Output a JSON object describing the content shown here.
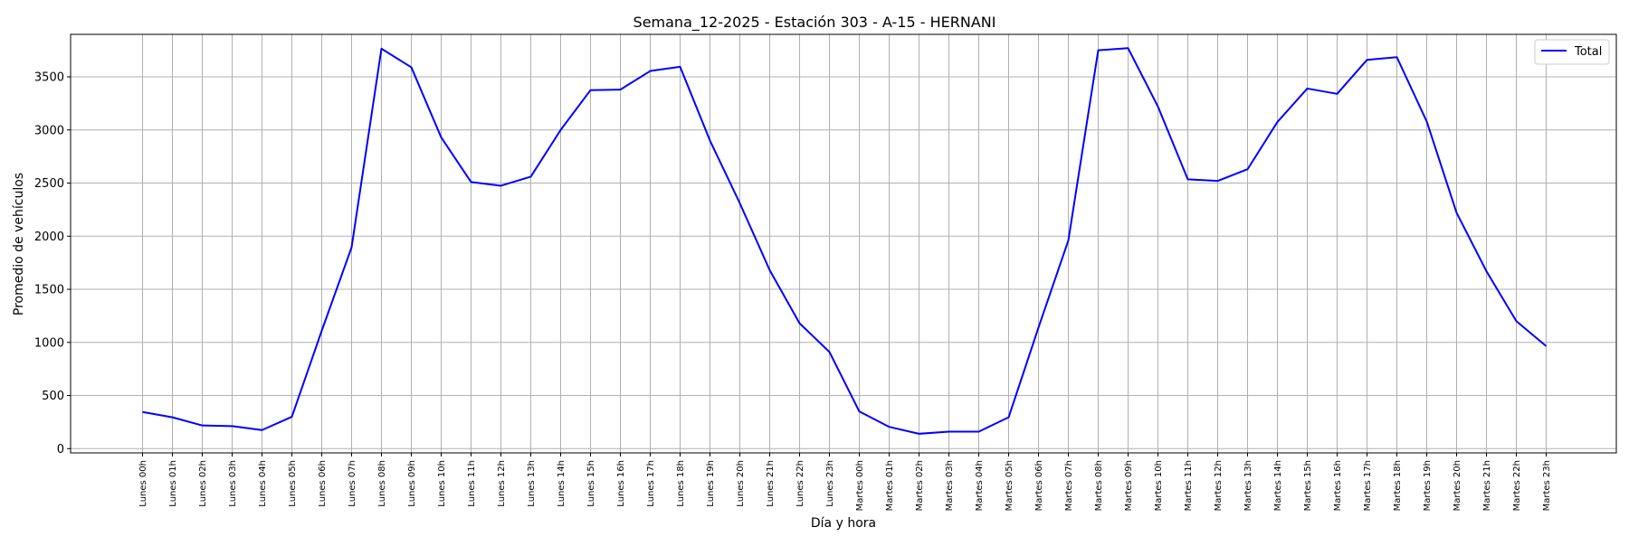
{
  "chart_data": {
    "type": "line",
    "title": "Semana_12-2025 - Estación 303 - A-15  - HERNANI",
    "xlabel": "Día y hora",
    "ylabel": "Promedio de vehículos",
    "ylim": [
      -40,
      3900
    ],
    "yticks": [
      0,
      500,
      1000,
      1500,
      2000,
      2500,
      3000,
      3500
    ],
    "grid": true,
    "legend_position": "top-right",
    "categories": [
      "Lunes 00h",
      "Lunes 01h",
      "Lunes 02h",
      "Lunes 03h",
      "Lunes 04h",
      "Lunes 05h",
      "Lunes 06h",
      "Lunes 07h",
      "Lunes 08h",
      "Lunes 09h",
      "Lunes 10h",
      "Lunes 11h",
      "Lunes 12h",
      "Lunes 13h",
      "Lunes 14h",
      "Lunes 15h",
      "Lunes 16h",
      "Lunes 17h",
      "Lunes 18h",
      "Lunes 19h",
      "Lunes 20h",
      "Lunes 21h",
      "Lunes 22h",
      "Lunes 23h",
      "Martes 00h",
      "Martes 01h",
      "Martes 02h",
      "Martes 03h",
      "Martes 04h",
      "Martes 05h",
      "Martes 06h",
      "Martes 07h",
      "Martes 08h",
      "Martes 09h",
      "Martes 10h",
      "Martes 11h",
      "Martes 12h",
      "Martes 13h",
      "Martes 14h",
      "Martes 15h",
      "Martes 16h",
      "Martes 17h",
      "Martes 18h",
      "Martes 19h",
      "Martes 20h",
      "Martes 21h",
      "Martes 22h",
      "Martes 23h"
    ],
    "series": [
      {
        "name": "Total",
        "color": "#0000ff",
        "values": [
          345,
          295,
          218,
          212,
          175,
          300,
          1110,
          1895,
          3765,
          3590,
          2930,
          2510,
          2475,
          2560,
          3000,
          3375,
          3380,
          3555,
          3595,
          2900,
          2310,
          1680,
          1180,
          910,
          350,
          205,
          140,
          160,
          160,
          295,
          1140,
          1960,
          3750,
          3770,
          3220,
          2535,
          2520,
          2630,
          3075,
          3390,
          3340,
          3660,
          3685,
          3080,
          2220,
          1670,
          1200,
          965
        ]
      }
    ]
  }
}
